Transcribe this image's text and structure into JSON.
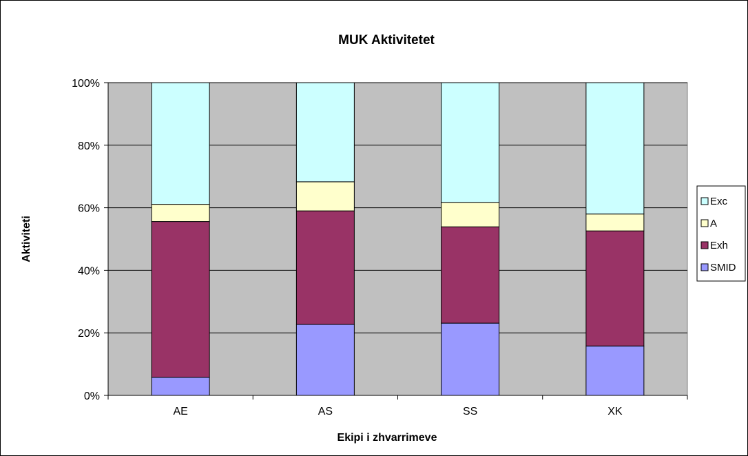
{
  "chart_data": {
    "type": "bar",
    "stacked": "percent",
    "title": "MUK Aktivitetet",
    "xlabel": "Ekipi i zhvarrimeve",
    "ylabel": "Aktiviteti",
    "categories": [
      "AE",
      "AS",
      "SS",
      "XK"
    ],
    "ylim": [
      0,
      100
    ],
    "yticks": [
      "0%",
      "20%",
      "40%",
      "60%",
      "80%",
      "100%"
    ],
    "grid": true,
    "legend": "right",
    "plot_background": "#c0c0c0",
    "series": [
      {
        "name": "SMID",
        "color": "#9999ff",
        "values": [
          5.8,
          22.7,
          23.1,
          15.8
        ]
      },
      {
        "name": "Exh",
        "color": "#993366",
        "values": [
          49.8,
          36.3,
          30.8,
          36.8
        ]
      },
      {
        "name": "A",
        "color": "#ffffcc",
        "values": [
          5.5,
          9.3,
          7.8,
          5.4
        ]
      },
      {
        "name": "Exc",
        "color": "#ccffff",
        "values": [
          38.9,
          31.7,
          38.3,
          42.0
        ]
      }
    ]
  }
}
